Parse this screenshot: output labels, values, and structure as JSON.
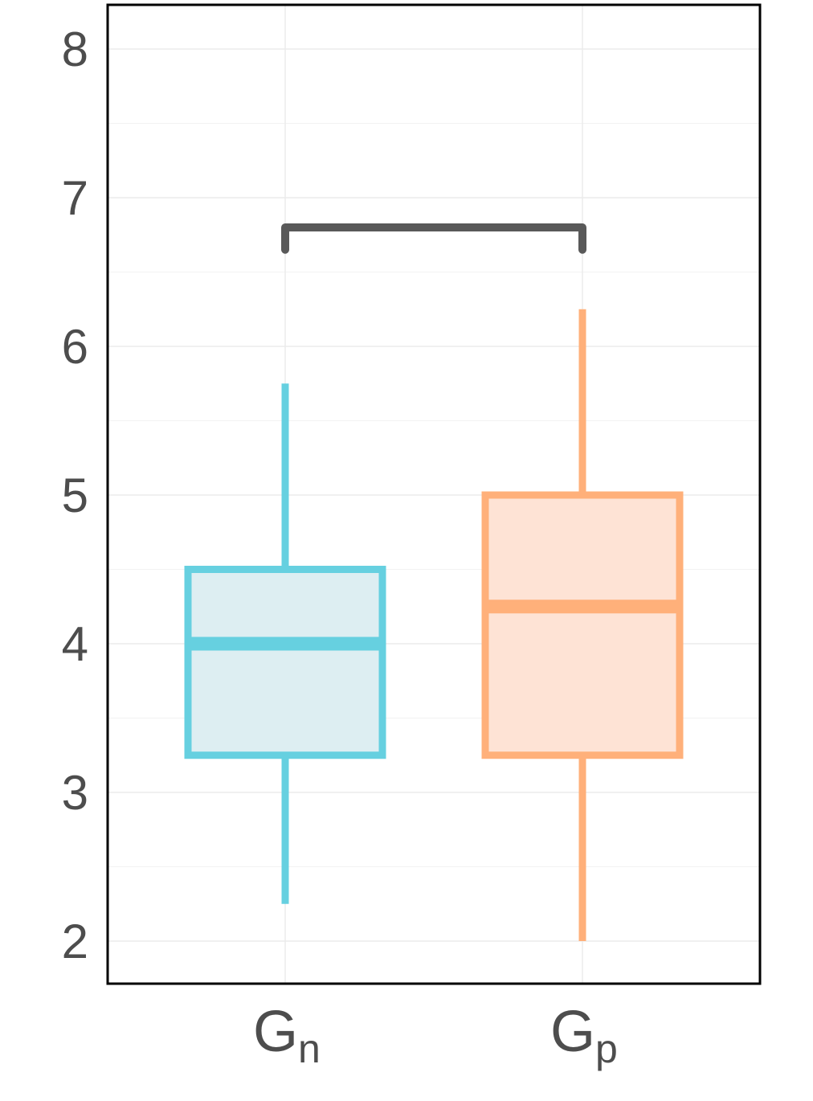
{
  "chart_data": {
    "type": "boxplot",
    "y_ticks": [
      2,
      3,
      4,
      5,
      6,
      7,
      8
    ],
    "ylim": [
      1.7,
      8.3
    ],
    "grid": true,
    "legend": "none",
    "categories": [
      {
        "main": "G",
        "sub": "n",
        "whisker_low": 2.25,
        "q1": 3.25,
        "median": 4.0,
        "q3": 4.5,
        "whisker_high": 5.75,
        "stroke_color": "#66d0e0",
        "fill_color": "#ddeef2"
      },
      {
        "main": "G",
        "sub": "p",
        "whisker_low": 2.0,
        "q1": 3.25,
        "median": 4.25,
        "q3": 5.0,
        "whisker_high": 6.25,
        "stroke_color": "#ffb07a",
        "fill_color": "#fee3d5"
      }
    ],
    "significance_bracket": {
      "from": 0,
      "to": 1,
      "y": 6.8,
      "tip": 6.65,
      "color": "#595959"
    }
  }
}
